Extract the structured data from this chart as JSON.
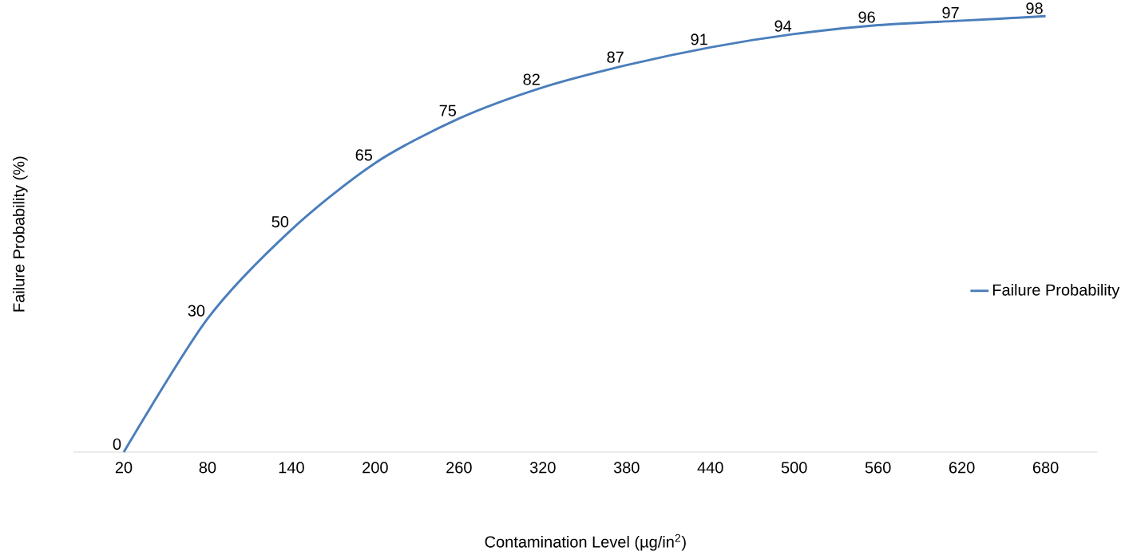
{
  "chart_data": {
    "type": "line",
    "xlabel": "Contamination Level (µg/in$^{2}$)",
    "ylabel": "Failure Probability (%)",
    "categories": [
      "20",
      "80",
      "140",
      "200",
      "260",
      "320",
      "380",
      "440",
      "500",
      "560",
      "620",
      "680"
    ],
    "series": [
      {
        "name": "Failure Probability",
        "color": "#4a7ebb",
        "values": [
          0,
          30,
          50,
          65,
          75,
          82,
          87,
          91,
          94,
          96,
          97,
          98
        ]
      }
    ],
    "data_labels": true,
    "legend": "right",
    "marker": "none",
    "line_style": "solid"
  }
}
